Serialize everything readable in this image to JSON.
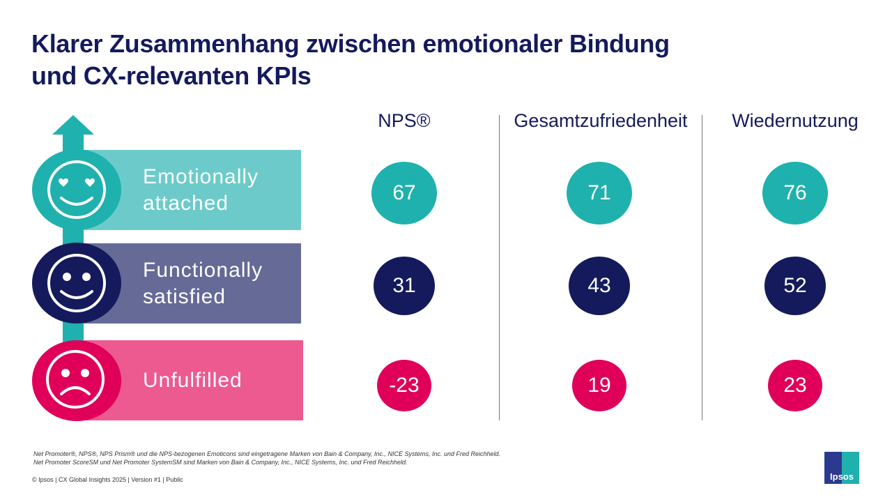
{
  "title": [
    "Klarer Zusammenhang zwischen emotionaler Bindung",
    "und CX-relevanten KPIs"
  ],
  "colors": {
    "title": "#141a5c",
    "teal": "#1fb1ad",
    "teal_light": "#6ccbca",
    "navy": "#141a5c",
    "purple": "#656a96",
    "pink": "#e0005a",
    "pink_light": "#ec5a90"
  },
  "segments": [
    {
      "label_lines": [
        "Emotionally",
        "attached"
      ],
      "icon": "heart-eyes-smiley-icon"
    },
    {
      "label_lines": [
        "Functionally",
        "satisfied"
      ],
      "icon": "smiley-icon"
    },
    {
      "label_lines": [
        "Unfulfilled"
      ],
      "icon": "sad-face-icon"
    }
  ],
  "chart_data": {
    "type": "table",
    "columns": [
      "NPS®",
      "Gesamtzufriedenheit",
      "Wiedernutzung"
    ],
    "rows": [
      "Emotionally attached",
      "Functionally satisfied",
      "Unfulfilled"
    ],
    "values": [
      [
        67,
        71,
        76
      ],
      [
        31,
        43,
        52
      ],
      [
        -23,
        19,
        23
      ]
    ]
  },
  "footnotes": [
    "Net Promoter®, NPS®, NPS Prism® und die NPS-bezogenen Emoticons sind eingetragene Marken von Bain & Company, Inc., NICE Systems, Inc. und Fred Reichheld.",
    "Net Promoter ScoreSM und Net Promoter SystemSM sind  Marken von Bain & Company, Inc., NICE Systems, Inc. und Fred Reichheld."
  ],
  "copyright": "© Ipsos | CX Global Insights 2025 | Version #1 | Public",
  "logo": "Ipsos"
}
